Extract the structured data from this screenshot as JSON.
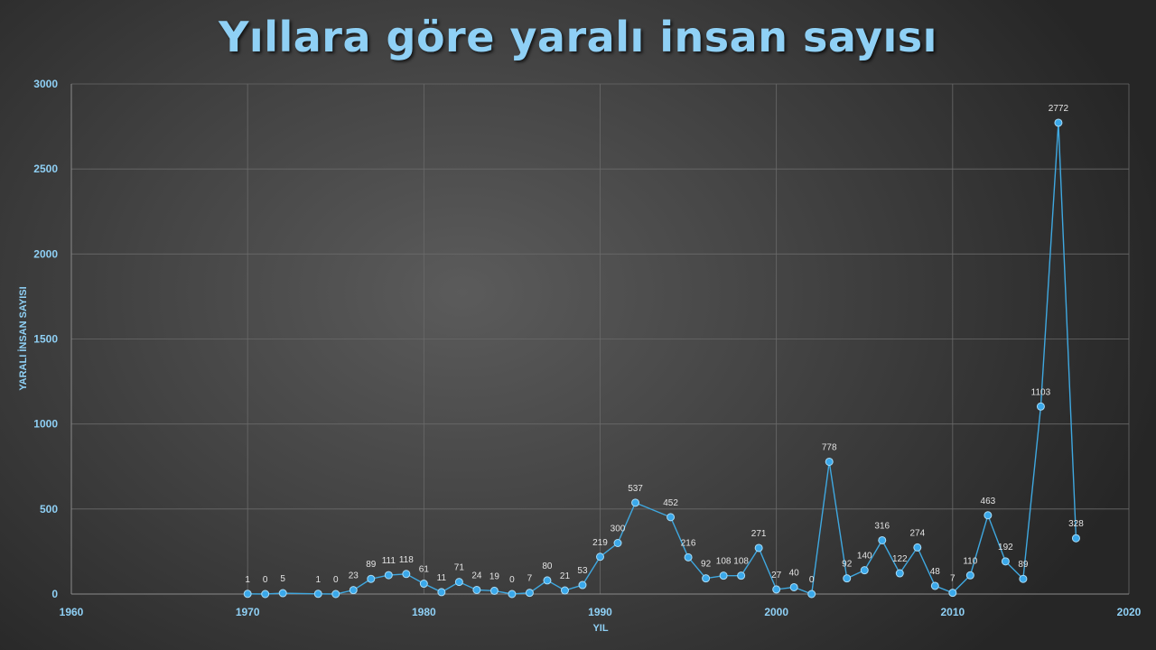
{
  "chart_data": {
    "type": "scatter",
    "title": "Yıllara göre yaralı insan sayısı",
    "xlabel": "YIL",
    "ylabel": "YARALI İNSAN SAYISI",
    "xlim": [
      1960,
      2020
    ],
    "ylim": [
      0,
      3000
    ],
    "x_ticks": [
      1960,
      1970,
      1980,
      1990,
      2000,
      2010,
      2020
    ],
    "y_ticks": [
      0,
      500,
      1000,
      1500,
      2000,
      2500,
      3000
    ],
    "grid": true,
    "series": [
      {
        "x": [
          1970,
          1971,
          1972,
          1974,
          1975,
          1976,
          1977,
          1978,
          1979,
          1980,
          1981,
          1982,
          1983,
          1984,
          1985,
          1986,
          1987,
          1988,
          1989,
          1990,
          1991,
          1992,
          1994,
          1995,
          1996,
          1997,
          1998,
          1999,
          2000,
          2001,
          2002,
          2003,
          2004,
          2005,
          2006,
          2007,
          2008,
          2009,
          2010,
          2011,
          2012,
          2013,
          2014,
          2015,
          2016,
          2017
        ],
        "y": [
          1,
          0,
          5,
          1,
          0,
          23,
          89,
          111,
          118,
          61,
          11,
          71,
          24,
          19,
          0,
          7,
          80,
          21,
          53,
          219,
          300,
          537,
          452,
          216,
          92,
          108,
          108,
          271,
          27,
          40,
          0,
          778,
          92,
          140,
          316,
          122,
          274,
          48,
          7,
          110,
          463,
          192,
          89,
          1103,
          2772,
          328
        ]
      }
    ],
    "colors": {
      "line": "#3fa8e0",
      "marker": "#3aa8ea",
      "text": "#8fd0f5",
      "data_label": "#e4e4e4"
    }
  }
}
